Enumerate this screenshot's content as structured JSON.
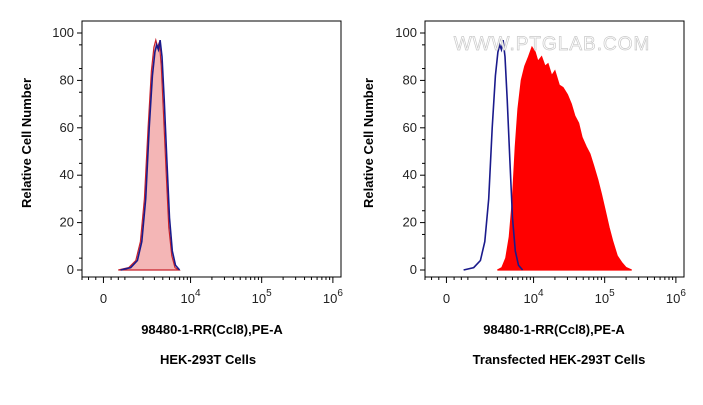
{
  "watermark": "WWW.PTGLAB.COM",
  "chart_data": [
    {
      "type": "area",
      "title": "HEK-293T Cells",
      "xlabel": "98480-1-RR(Ccl8),PE-A",
      "ylabel": "Relative Cell Number",
      "xscale": "biexponential",
      "x_ticks": [
        {
          "base": "0",
          "exp": ""
        },
        {
          "base": "10",
          "exp": "4"
        },
        {
          "base": "10",
          "exp": "5"
        },
        {
          "base": "10",
          "exp": "6"
        }
      ],
      "y_ticks": [
        "0",
        "20",
        "40",
        "60",
        "80",
        "100"
      ],
      "ylim": [
        0,
        100
      ],
      "grid": false,
      "series": [
        {
          "role": "sample",
          "color": "#f4b6b6",
          "stroke": "#c8202a",
          "points": [
            [
              600,
              0
            ],
            [
              1100,
              1
            ],
            [
              1500,
              4
            ],
            [
              1800,
              12
            ],
            [
              2100,
              30
            ],
            [
              2400,
              60
            ],
            [
              2700,
              84
            ],
            [
              2950,
              94
            ],
            [
              3150,
              97
            ],
            [
              3350,
              94
            ],
            [
              3550,
              96
            ],
            [
              3800,
              86
            ],
            [
              4100,
              66
            ],
            [
              4500,
              40
            ],
            [
              4900,
              18
            ],
            [
              5400,
              6
            ],
            [
              6000,
              1
            ],
            [
              6800,
              0
            ]
          ]
        },
        {
          "role": "control",
          "color": "#1a1a8c",
          "points": [
            [
              700,
              0
            ],
            [
              1200,
              1
            ],
            [
              1600,
              4
            ],
            [
              1900,
              12
            ],
            [
              2200,
              30
            ],
            [
              2500,
              60
            ],
            [
              2800,
              82
            ],
            [
              3050,
              92
            ],
            [
              3250,
              95
            ],
            [
              3450,
              93
            ],
            [
              3650,
              97
            ],
            [
              3900,
              90
            ],
            [
              4200,
              72
            ],
            [
              4600,
              46
            ],
            [
              5000,
              22
            ],
            [
              5500,
              8
            ],
            [
              6100,
              2
            ],
            [
              7000,
              0
            ]
          ]
        }
      ]
    },
    {
      "type": "area",
      "title": "Transfected HEK-293T Cells",
      "xlabel": "98480-1-RR(Ccl8),PE-A",
      "ylabel": "Relative Cell Number",
      "xscale": "biexponential",
      "x_ticks": [
        {
          "base": "0",
          "exp": ""
        },
        {
          "base": "10",
          "exp": "4"
        },
        {
          "base": "10",
          "exp": "5"
        },
        {
          "base": "10",
          "exp": "6"
        }
      ],
      "y_ticks": [
        "0",
        "20",
        "40",
        "60",
        "80",
        "100"
      ],
      "ylim": [
        0,
        100
      ],
      "grid": false,
      "series": [
        {
          "role": "sample",
          "color": "#ff0000",
          "points": [
            [
              3000,
              0
            ],
            [
              3500,
              1
            ],
            [
              4000,
              5
            ],
            [
              4500,
              14
            ],
            [
              5000,
              30
            ],
            [
              5500,
              52
            ],
            [
              6000,
              68
            ],
            [
              6700,
              80
            ],
            [
              7500,
              86
            ],
            [
              8500,
              90
            ],
            [
              9500,
              94
            ],
            [
              10500,
              92
            ],
            [
              11500,
              88
            ],
            [
              13000,
              90
            ],
            [
              14500,
              86
            ],
            [
              16000,
              87
            ],
            [
              18000,
              82
            ],
            [
              20000,
              84
            ],
            [
              23000,
              78
            ],
            [
              26000,
              77
            ],
            [
              30000,
              74
            ],
            [
              34000,
              70
            ],
            [
              38000,
              65
            ],
            [
              43000,
              62
            ],
            [
              48000,
              56
            ],
            [
              55000,
              52
            ],
            [
              62000,
              49
            ],
            [
              70000,
              44
            ],
            [
              80000,
              38
            ],
            [
              90000,
              32
            ],
            [
              100000,
              26
            ],
            [
              115000,
              18
            ],
            [
              130000,
              12
            ],
            [
              150000,
              6
            ],
            [
              175000,
              3
            ],
            [
              200000,
              1
            ],
            [
              240000,
              0
            ]
          ]
        },
        {
          "role": "control",
          "color": "#1a1a8c",
          "points": [
            [
              700,
              0
            ],
            [
              1200,
              1
            ],
            [
              1600,
              4
            ],
            [
              1900,
              12
            ],
            [
              2200,
              30
            ],
            [
              2500,
              60
            ],
            [
              2800,
              82
            ],
            [
              3050,
              92
            ],
            [
              3250,
              95
            ],
            [
              3450,
              93
            ],
            [
              3650,
              97
            ],
            [
              3900,
              90
            ],
            [
              4200,
              72
            ],
            [
              4600,
              46
            ],
            [
              5000,
              22
            ],
            [
              5500,
              8
            ],
            [
              6100,
              2
            ],
            [
              7000,
              0
            ]
          ]
        }
      ]
    }
  ]
}
